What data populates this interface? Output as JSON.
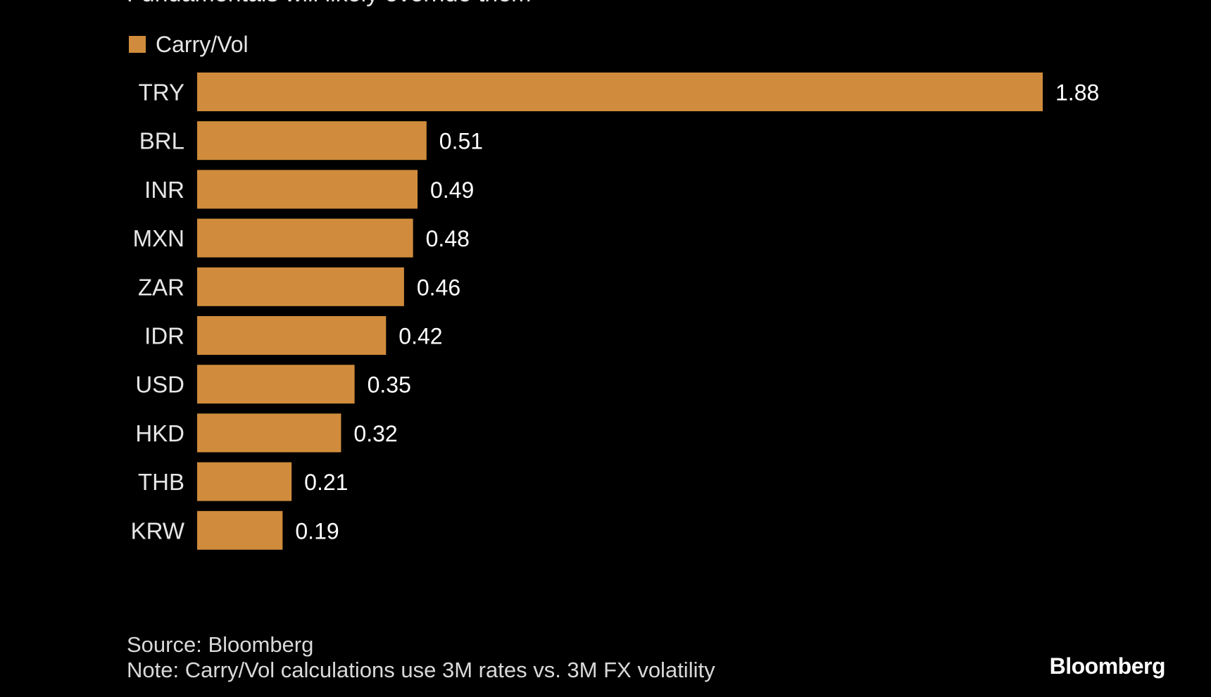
{
  "subtitle": "Fundamentals will likely override them",
  "legend": {
    "label": "Carry/Vol",
    "color": "#d08c3c"
  },
  "chart_data": {
    "type": "bar",
    "orientation": "horizontal",
    "categories": [
      "TRY",
      "BRL",
      "INR",
      "MXN",
      "ZAR",
      "IDR",
      "USD",
      "HKD",
      "THB",
      "KRW"
    ],
    "series": [
      {
        "name": "Carry/Vol",
        "values": [
          1.88,
          0.51,
          0.49,
          0.48,
          0.46,
          0.42,
          0.35,
          0.32,
          0.21,
          0.19
        ]
      }
    ],
    "value_labels": [
      "1.88",
      "0.51",
      "0.49",
      "0.48",
      "0.46",
      "0.42",
      "0.35",
      "0.32",
      "0.21",
      "0.19"
    ],
    "xlim": [
      0,
      1.88
    ],
    "grid": false,
    "legend_position": "top-left",
    "bar_color": "#d08c3c",
    "title": "",
    "xlabel": "",
    "ylabel": ""
  },
  "footer": {
    "source": "Source: Bloomberg",
    "note": "Note: Carry/Vol calculations use 3M rates vs. 3M FX volatility"
  },
  "brand": "Bloomberg"
}
